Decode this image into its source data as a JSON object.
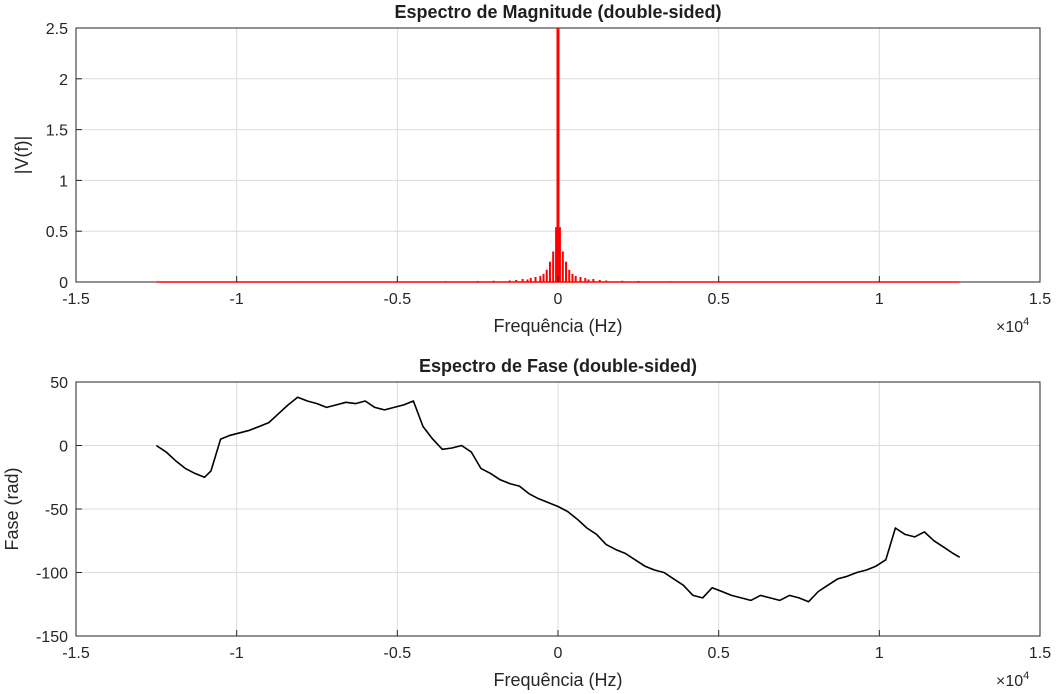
{
  "chart_data": [
    {
      "type": "line",
      "title": "Espectro de Magnitude (double-sided)",
      "xlabel": "Frequência (Hz)",
      "ylabel": "|V(f)|",
      "x_multiplier": "×10",
      "x_multiplier_exp": "4",
      "xlim": [
        -15000,
        15000
      ],
      "ylim": [
        0,
        2.5
      ],
      "xticks": [
        -15000,
        -10000,
        -5000,
        0,
        5000,
        10000,
        15000
      ],
      "xtick_labels": [
        "-1.5",
        "-1",
        "-0.5",
        "0",
        "0.5",
        "1",
        "1.5"
      ],
      "yticks": [
        0,
        0.5,
        1,
        1.5,
        2,
        2.5
      ],
      "ytick_labels": [
        "0",
        "0.5",
        "1",
        "1.5",
        "2",
        "2.5"
      ],
      "grid": true,
      "color": "#ff0000",
      "stem_series": {
        "name": "",
        "x": [
          -12500,
          -11000,
          -9500,
          -8000,
          -6500,
          -5000,
          -3500,
          -2500,
          -2000,
          -1500,
          -1300,
          -1100,
          -950,
          -850,
          -700,
          -550,
          -450,
          -350,
          -250,
          -150,
          -60,
          0,
          60,
          150,
          250,
          350,
          450,
          550,
          700,
          850,
          950,
          1100,
          1300,
          1500,
          2000,
          2500,
          3500,
          5000,
          6500,
          8000,
          9500,
          11000,
          12500
        ],
        "y": [
          0.005,
          0.005,
          0.005,
          0.006,
          0.006,
          0.007,
          0.008,
          0.01,
          0.012,
          0.015,
          0.02,
          0.03,
          0.025,
          0.04,
          0.05,
          0.06,
          0.08,
          0.12,
          0.2,
          0.3,
          0.54,
          2.5,
          0.54,
          0.3,
          0.2,
          0.12,
          0.08,
          0.06,
          0.05,
          0.04,
          0.025,
          0.03,
          0.02,
          0.015,
          0.012,
          0.01,
          0.008,
          0.007,
          0.006,
          0.006,
          0.005,
          0.005,
          0.005
        ]
      }
    },
    {
      "type": "line",
      "title": "Espectro de Fase (double-sided)",
      "xlabel": "Frequência (Hz)",
      "ylabel": "Fase (rad)",
      "x_multiplier": "×10",
      "x_multiplier_exp": "4",
      "xlim": [
        -15000,
        15000
      ],
      "ylim": [
        -150,
        50
      ],
      "xticks": [
        -15000,
        -10000,
        -5000,
        0,
        5000,
        10000,
        15000
      ],
      "xtick_labels": [
        "-1.5",
        "-1",
        "-0.5",
        "0",
        "0.5",
        "1",
        "1.5"
      ],
      "yticks": [
        -150,
        -100,
        -50,
        0,
        50
      ],
      "ytick_labels": [
        "-150",
        "-100",
        "-50",
        "0",
        "50"
      ],
      "grid": true,
      "color": "#000000",
      "series": [
        {
          "name": "",
          "x": [
            -12500,
            -12200,
            -11900,
            -11600,
            -11300,
            -11000,
            -10800,
            -10500,
            -10200,
            -9900,
            -9600,
            -9300,
            -9000,
            -8700,
            -8400,
            -8100,
            -7800,
            -7500,
            -7200,
            -6900,
            -6600,
            -6300,
            -6000,
            -5700,
            -5400,
            -5100,
            -4800,
            -4500,
            -4200,
            -3900,
            -3600,
            -3300,
            -3000,
            -2700,
            -2400,
            -2100,
            -1800,
            -1500,
            -1200,
            -900,
            -600,
            -300,
            0,
            300,
            600,
            900,
            1200,
            1500,
            1800,
            2100,
            2400,
            2700,
            3000,
            3300,
            3600,
            3900,
            4200,
            4500,
            4800,
            5100,
            5400,
            5700,
            6000,
            6300,
            6600,
            6900,
            7200,
            7500,
            7800,
            8100,
            8400,
            8700,
            9000,
            9300,
            9600,
            9900,
            10200,
            10500,
            10800,
            11100,
            11400,
            11700,
            12000,
            12300,
            12500
          ],
          "y": [
            0,
            -5,
            -12,
            -18,
            -22,
            -25,
            -20,
            5,
            8,
            10,
            12,
            15,
            18,
            25,
            32,
            38,
            35,
            33,
            30,
            32,
            34,
            33,
            35,
            30,
            28,
            30,
            32,
            35,
            15,
            5,
            -3,
            -2,
            0,
            -5,
            -18,
            -22,
            -27,
            -30,
            -32,
            -38,
            -42,
            -45,
            -48,
            -52,
            -58,
            -65,
            -70,
            -78,
            -82,
            -85,
            -90,
            -95,
            -98,
            -100,
            -105,
            -110,
            -118,
            -120,
            -112,
            -115,
            -118,
            -120,
            -122,
            -118,
            -120,
            -122,
            -118,
            -120,
            -123,
            -115,
            -110,
            -105,
            -103,
            -100,
            -98,
            -95,
            -90,
            -65,
            -70,
            -72,
            -68,
            -75,
            -80,
            -85,
            -88
          ]
        }
      ]
    }
  ]
}
